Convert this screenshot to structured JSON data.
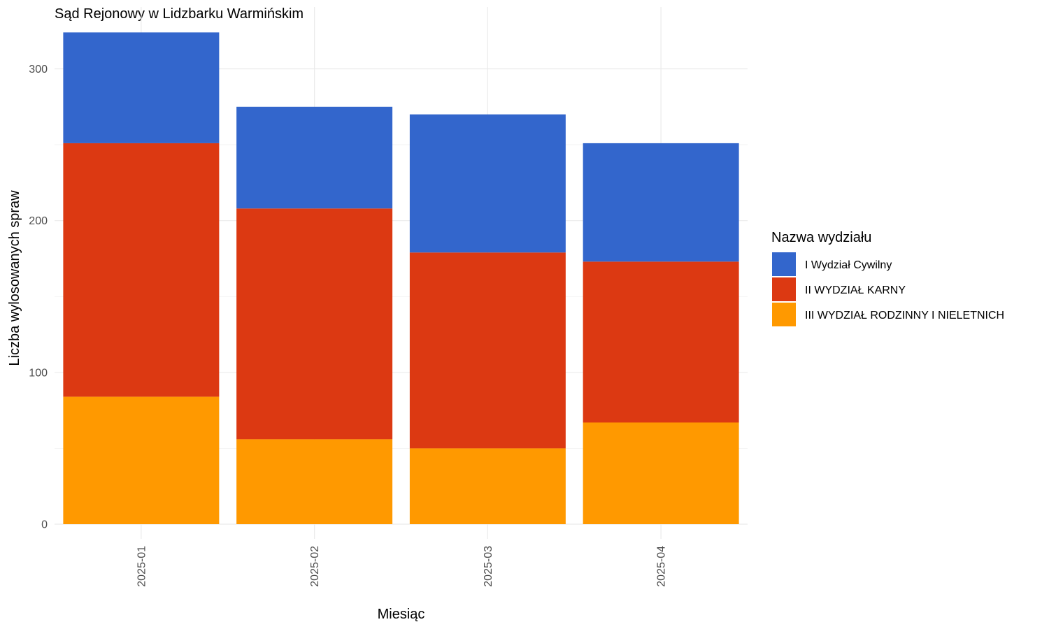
{
  "chart_data": {
    "type": "bar",
    "stacked": true,
    "title": "Sąd Rejonowy w Lidzbarku Warmińskim",
    "xlabel": "Miesiąc",
    "ylabel": "Liczba wylosowanych spraw",
    "categories": [
      "2025-01",
      "2025-02",
      "2025-03",
      "2025-04"
    ],
    "ylim": [
      0,
      325
    ],
    "yticks": [
      0,
      100,
      200,
      300
    ],
    "grid": true,
    "legend": {
      "title": "Nazwa wydziału",
      "position": "right"
    },
    "series": [
      {
        "name": "I Wydział Cywilny",
        "color": "#3366CC",
        "values": [
          73,
          67,
          91,
          78
        ]
      },
      {
        "name": "II WYDZIAŁ KARNY",
        "color": "#DC3912",
        "values": [
          167,
          152,
          129,
          106
        ]
      },
      {
        "name": "III WYDZIAŁ RODZINNY I NIELETNICH",
        "color": "#FF9900",
        "values": [
          84,
          56,
          50,
          67
        ]
      }
    ]
  }
}
